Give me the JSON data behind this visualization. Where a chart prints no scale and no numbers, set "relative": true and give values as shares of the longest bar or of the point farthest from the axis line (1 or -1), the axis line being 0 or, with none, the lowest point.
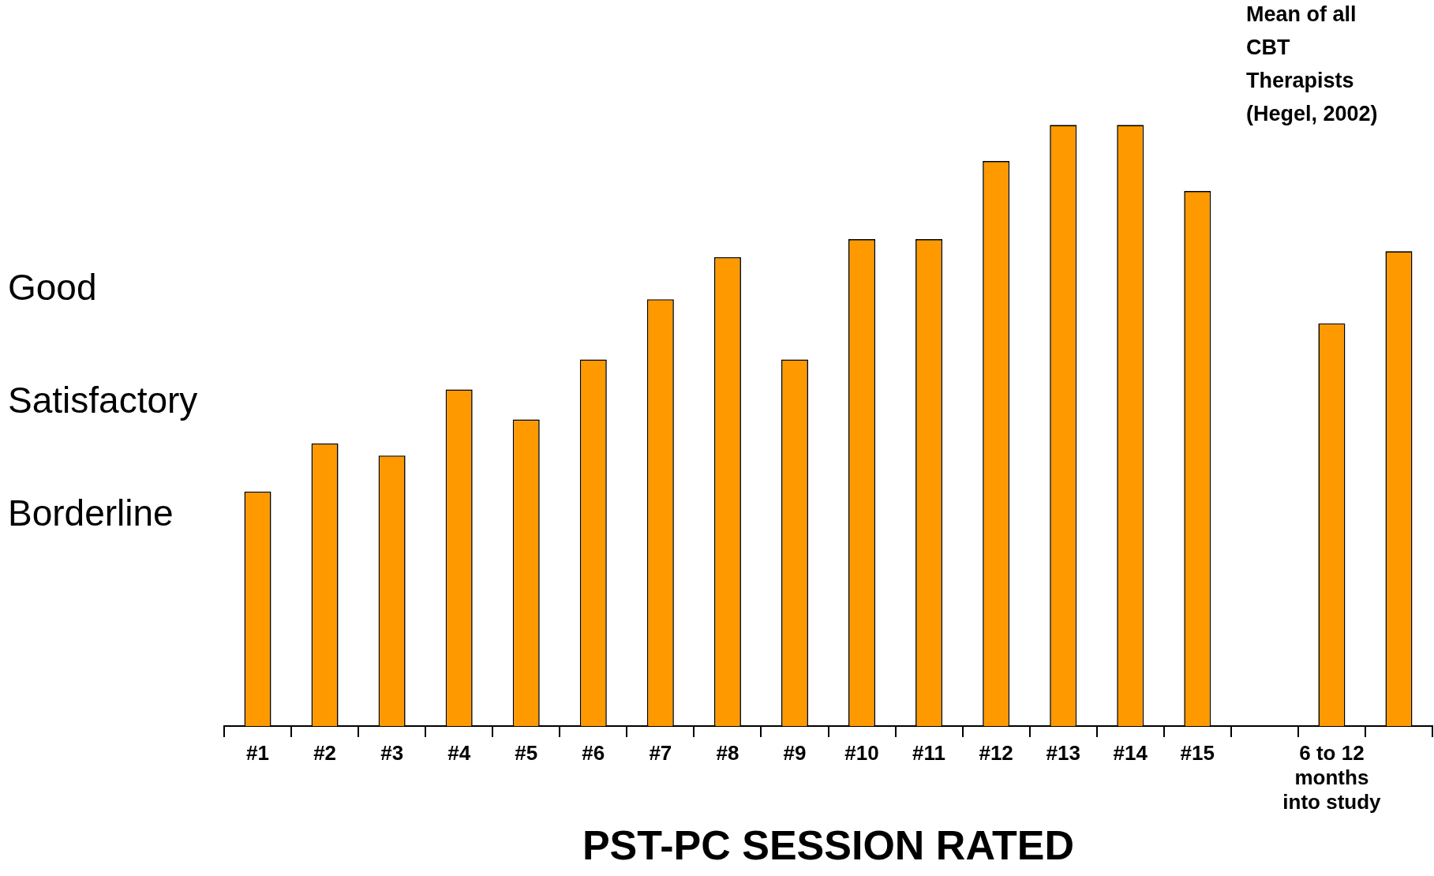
{
  "chart_data": {
    "type": "bar",
    "xlabel": "PST-PC SESSION RATED",
    "relative": true,
    "categories": [
      "#1",
      "#2",
      "#3",
      "#4",
      "#5",
      "#6",
      "#7",
      "#8",
      "#9",
      "#10",
      "#11",
      "#12",
      "#13",
      "#14",
      "#15",
      null,
      "6 to 12 months into study",
      null
    ],
    "values": [
      0.39,
      0.47,
      0.45,
      0.56,
      0.51,
      0.61,
      0.71,
      0.78,
      0.61,
      0.81,
      0.81,
      0.94,
      1,
      1,
      0.89,
      null,
      0.67,
      0.79
    ],
    "color": "#ff9900",
    "annotations": [
      "Good",
      "Satisfactory",
      "Borderline",
      "Mean of all CBT Therapists (Hegel, 2002)"
    ],
    "grid": false,
    "legend": false
  }
}
